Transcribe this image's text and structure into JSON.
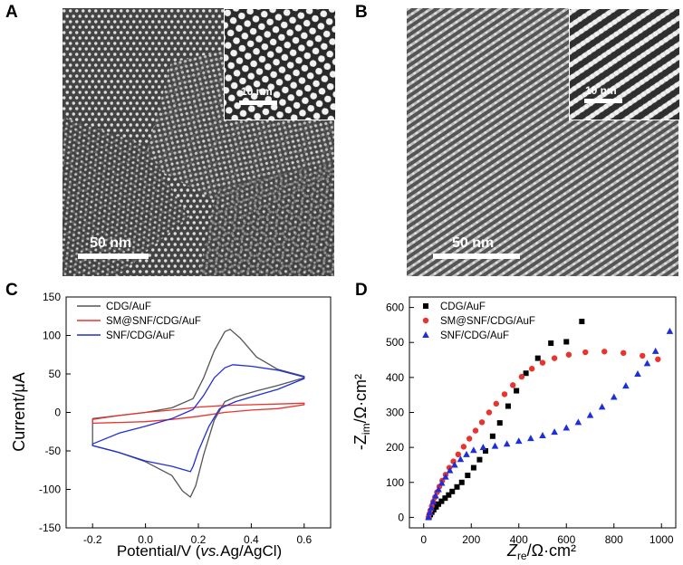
{
  "panels": {
    "A": {
      "label": "A",
      "scale_main": "50 nm",
      "scale_inset": "10 nm"
    },
    "B": {
      "label": "B",
      "scale_main": "50 nm",
      "scale_inset": "10 nm"
    },
    "C": {
      "label": "C"
    },
    "D": {
      "label": "D"
    }
  },
  "colors": {
    "black": "#000000",
    "red": "#e8332f",
    "blue": "#1f2fd8",
    "gray": "#555555"
  },
  "chart_data": [
    {
      "id": "C",
      "type": "line",
      "title": "",
      "xlabel_main": "Potential/V (",
      "xlabel_italic": "vs.",
      "xlabel_rest": "Ag/AgCl)",
      "ylabel": "Current/μA",
      "xlim": [
        -0.3,
        0.7
      ],
      "ylim": [
        -150,
        150
      ],
      "xticks": [
        -0.2,
        0.0,
        0.2,
        0.4,
        0.6
      ],
      "xtick_labels": [
        "-0.2",
        "0.0",
        "0.2",
        "0.4",
        "0.6"
      ],
      "yticks": [
        -150,
        -100,
        -50,
        0,
        50,
        100,
        150
      ],
      "ytick_labels": [
        "-150",
        "-100",
        "-50",
        "0",
        "50",
        "100",
        "150"
      ],
      "legend": [
        "CDG/AuF",
        "SM@SNF/CDG/AuF",
        "SNF/CDG/AuF"
      ],
      "series": [
        {
          "name": "CDG/AuF",
          "color": "#555555",
          "points": [
            [
              -0.2,
              -8
            ],
            [
              -0.1,
              -4
            ],
            [
              0.0,
              0
            ],
            [
              0.1,
              6
            ],
            [
              0.18,
              18
            ],
            [
              0.22,
              45
            ],
            [
              0.26,
              80
            ],
            [
              0.3,
              105
            ],
            [
              0.32,
              108
            ],
            [
              0.36,
              96
            ],
            [
              0.42,
              72
            ],
            [
              0.5,
              56
            ],
            [
              0.6,
              47
            ],
            [
              0.6,
              45
            ],
            [
              0.5,
              35
            ],
            [
              0.42,
              28
            ],
            [
              0.34,
              20
            ],
            [
              0.3,
              14
            ],
            [
              0.26,
              -10
            ],
            [
              0.22,
              -55
            ],
            [
              0.19,
              -95
            ],
            [
              0.17,
              -110
            ],
            [
              0.14,
              -102
            ],
            [
              0.1,
              -82
            ],
            [
              0.0,
              -64
            ],
            [
              -0.1,
              -52
            ],
            [
              -0.2,
              -43
            ],
            [
              -0.2,
              -8
            ]
          ]
        },
        {
          "name": "SM@SNF/CDG/AuF",
          "color": "#e8332f",
          "points": [
            [
              -0.2,
              -9
            ],
            [
              -0.1,
              -4
            ],
            [
              0.0,
              0
            ],
            [
              0.1,
              3
            ],
            [
              0.2,
              7
            ],
            [
              0.3,
              9
            ],
            [
              0.4,
              10
            ],
            [
              0.5,
              11
            ],
            [
              0.6,
              12
            ],
            [
              0.6,
              10
            ],
            [
              0.5,
              5
            ],
            [
              0.4,
              3
            ],
            [
              0.3,
              0
            ],
            [
              0.2,
              -5
            ],
            [
              0.1,
              -9
            ],
            [
              0.0,
              -12
            ],
            [
              -0.1,
              -13
            ],
            [
              -0.2,
              -14
            ],
            [
              -0.2,
              -9
            ]
          ]
        },
        {
          "name": "SNF/CDG/AuF",
          "color": "#1f2fd8",
          "points": [
            [
              -0.2,
              -41
            ],
            [
              -0.1,
              -27
            ],
            [
              0.0,
              -18
            ],
            [
              0.1,
              -8
            ],
            [
              0.18,
              4
            ],
            [
              0.22,
              22
            ],
            [
              0.26,
              45
            ],
            [
              0.3,
              58
            ],
            [
              0.33,
              62
            ],
            [
              0.4,
              60
            ],
            [
              0.5,
              55
            ],
            [
              0.6,
              46
            ],
            [
              0.6,
              44
            ],
            [
              0.5,
              30
            ],
            [
              0.42,
              22
            ],
            [
              0.34,
              14
            ],
            [
              0.28,
              5
            ],
            [
              0.24,
              -18
            ],
            [
              0.2,
              -50
            ],
            [
              0.18,
              -70
            ],
            [
              0.17,
              -77
            ],
            [
              0.14,
              -74
            ],
            [
              0.1,
              -70
            ],
            [
              0.0,
              -63
            ],
            [
              -0.1,
              -52
            ],
            [
              -0.2,
              -43
            ],
            [
              -0.2,
              -41
            ]
          ]
        }
      ]
    },
    {
      "id": "D",
      "type": "scatter",
      "title": "",
      "xlabel_main": "Z",
      "xlabel_sub": "re",
      "xlabel_rest": "/Ω·cm²",
      "ylabel_main": "-Z",
      "ylabel_sub": "im",
      "ylabel_rest": "/Ω·cm²",
      "xlim": [
        -60,
        1060
      ],
      "ylim": [
        -30,
        630
      ],
      "xticks": [
        0,
        200,
        400,
        600,
        800,
        1000
      ],
      "xtick_labels": [
        "0",
        "200",
        "400",
        "600",
        "800",
        "1000"
      ],
      "yticks": [
        0,
        100,
        200,
        300,
        400,
        500,
        600
      ],
      "ytick_labels": [
        "0",
        "100",
        "200",
        "300",
        "400",
        "500",
        "600"
      ],
      "legend": [
        "CDG/AuF",
        "SM@SNF/CDG/AuF",
        "SNF/CDG/AuF"
      ],
      "series": [
        {
          "name": "CDG/AuF",
          "color": "#000000",
          "marker": "square",
          "points": [
            [
              22,
              0
            ],
            [
              28,
              8
            ],
            [
              34,
              15
            ],
            [
              42,
              22
            ],
            [
              52,
              30
            ],
            [
              62,
              38
            ],
            [
              75,
              46
            ],
            [
              90,
              55
            ],
            [
              105,
              64
            ],
            [
              120,
              74
            ],
            [
              140,
              87
            ],
            [
              160,
              100
            ],
            [
              185,
              120
            ],
            [
              210,
              142
            ],
            [
              235,
              165
            ],
            [
              260,
              190
            ],
            [
              290,
              232
            ],
            [
              320,
              270
            ],
            [
              355,
              318
            ],
            [
              390,
              362
            ],
            [
              430,
              412
            ],
            [
              480,
              455
            ],
            [
              535,
              498
            ],
            [
              600,
              502
            ],
            [
              665,
              560
            ]
          ]
        },
        {
          "name": "SM@SNF/CDG/AuF",
          "color": "#e8332f",
          "marker": "circle",
          "points": [
            [
              20,
              0
            ],
            [
              24,
              10
            ],
            [
              28,
              20
            ],
            [
              34,
              32
            ],
            [
              40,
              45
            ],
            [
              48,
              58
            ],
            [
              56,
              72
            ],
            [
              66,
              88
            ],
            [
              78,
              105
            ],
            [
              92,
              122
            ],
            [
              108,
              142
            ],
            [
              125,
              160
            ],
            [
              145,
              180
            ],
            [
              168,
              202
            ],
            [
              192,
              225
            ],
            [
              218,
              248
            ],
            [
              245,
              272
            ],
            [
              275,
              300
            ],
            [
              305,
              325
            ],
            [
              340,
              352
            ],
            [
              375,
              378
            ],
            [
              412,
              402
            ],
            [
              455,
              425
            ],
            [
              500,
              442
            ],
            [
              550,
              455
            ],
            [
              610,
              465
            ],
            [
              680,
              472
            ],
            [
              760,
              474
            ],
            [
              840,
              470
            ],
            [
              920,
              462
            ],
            [
              985,
              452
            ]
          ]
        },
        {
          "name": "SNF/CDG/AuF",
          "color": "#1f2fd8",
          "marker": "triangle",
          "points": [
            [
              20,
              0
            ],
            [
              26,
              14
            ],
            [
              32,
              28
            ],
            [
              40,
              45
            ],
            [
              50,
              62
            ],
            [
              62,
              80
            ],
            [
              76,
              98
            ],
            [
              92,
              116
            ],
            [
              110,
              134
            ],
            [
              130,
              150
            ],
            [
              155,
              166
            ],
            [
              180,
              180
            ],
            [
              210,
              192
            ],
            [
              250,
              200
            ],
            [
              300,
              204
            ],
            [
              350,
              210
            ],
            [
              400,
              218
            ],
            [
              450,
              226
            ],
            [
              500,
              234
            ],
            [
              550,
              244
            ],
            [
              600,
              256
            ],
            [
              650,
              272
            ],
            [
              700,
              292
            ],
            [
              750,
              316
            ],
            [
              800,
              344
            ],
            [
              850,
              376
            ],
            [
              900,
              410
            ],
            [
              940,
              440
            ],
            [
              975,
              475
            ],
            [
              1035,
              532
            ]
          ]
        }
      ]
    }
  ]
}
